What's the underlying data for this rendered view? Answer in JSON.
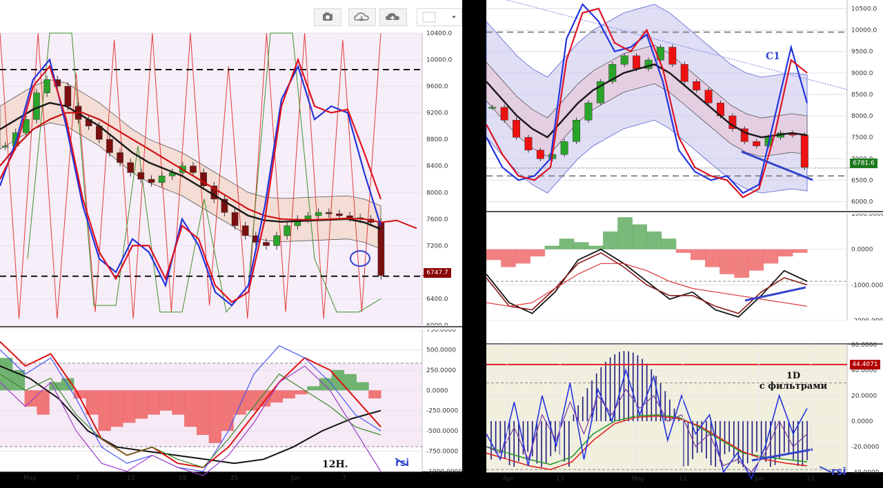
{
  "toolbar": {
    "icons": [
      "camera-icon",
      "cloud-download-icon",
      "cloud-upload-icon",
      "color-swatch-icon",
      "dropdown-arrow-icon"
    ]
  },
  "chart_data": [
    {
      "type": "line",
      "title": "",
      "ohlc_candles": true,
      "y_ticks": [
        "10400.0",
        "10000.0",
        "9600.0",
        "9200.0",
        "8800.0",
        "8400.0",
        "8000.0",
        "7600.0",
        "7200.0",
        "6800.0",
        "6400.0",
        "6000.0"
      ],
      "ylim": [
        6000,
        10400
      ],
      "x_ticks": [
        "May",
        "7",
        "13",
        "19",
        "25",
        "Jun",
        "7"
      ],
      "price_label": "6747.7",
      "price_value": 6747.7,
      "horizontal_levels": [
        9850,
        6740
      ],
      "series": [
        {
          "color": "#1a1a1a",
          "values": [
            8950,
            9100,
            9250,
            9350,
            9300,
            9150,
            9000,
            8800,
            8600,
            8450,
            8350,
            8250,
            8100,
            7950,
            7800,
            7650,
            7580,
            7560,
            7570,
            7580,
            7590,
            7600,
            7550,
            7450
          ]
        },
        {
          "color": "#cc1111",
          "values": [
            8400,
            8700,
            8950,
            9100,
            9200,
            9200,
            9100,
            8950,
            8800,
            8650,
            8500,
            8350,
            8200,
            8050,
            7900,
            7750,
            7650,
            7600,
            7590,
            7590,
            7600,
            7610,
            7600,
            7550
          ]
        },
        {
          "color": "#2233dd",
          "values": [
            8100,
            8800,
            9700,
            10000,
            9000,
            7800,
            7000,
            6800,
            7300,
            7100,
            6600,
            7600,
            7200,
            6500,
            6300,
            6600,
            7800,
            9400,
            9900,
            9100,
            9300,
            9200,
            8300,
            7500
          ]
        },
        {
          "color": "#dd1122",
          "values": [
            8200,
            8700,
            9600,
            9900,
            9100,
            7900,
            7100,
            6700,
            7200,
            7200,
            6700,
            7500,
            7300,
            6600,
            6350,
            6500,
            7600,
            9300,
            10000,
            9300,
            9200,
            9250,
            8600,
            7900
          ]
        }
      ],
      "candles": [
        8700,
        8900,
        9100,
        9500,
        9700,
        9600,
        9300,
        9100,
        9000,
        8800,
        8600,
        8450,
        8300,
        8200,
        8150,
        8250,
        8300,
        8400,
        8300,
        8100,
        7900,
        7700,
        7500,
        7350,
        7250,
        7200,
        7350,
        7500,
        7600,
        7650,
        7700,
        7680,
        7650,
        7620,
        7600,
        7550,
        6750
      ],
      "annotation": ""
    },
    {
      "type": "area",
      "y_ticks": [
        "750.0000",
        "500.0000",
        "250.0000",
        "0.0000",
        "-250.0000",
        "-500.0000",
        "-750.0000",
        "-1000.0000"
      ],
      "ylim": [
        -1000,
        750
      ],
      "x_ticks": [
        "May",
        "7",
        "13",
        "19",
        "25",
        "Jun",
        "7"
      ],
      "histogram": [
        400,
        250,
        -200,
        -300,
        100,
        150,
        -100,
        -300,
        -500,
        -450,
        -400,
        -350,
        -300,
        -250,
        -300,
        -450,
        -550,
        -650,
        -500,
        -300,
        -250,
        -200,
        -150,
        -100,
        -50,
        50,
        150,
        250,
        200,
        100,
        -100
      ],
      "annotation": "12H.",
      "pen_label": "rsi"
    },
    {
      "type": "line",
      "y_ticks": [
        "10500.0",
        "10000.0",
        "9500.0",
        "9000.0",
        "8500.0",
        "8000.0",
        "7500.0",
        "7000.0",
        "6500.0",
        "6000.0"
      ],
      "ylim": [
        5800,
        10700
      ],
      "x_ticks": [],
      "price_label": "6781.6",
      "price_value": 6781.6,
      "horizontal_levels": [
        9950,
        6600
      ],
      "annotation": "C1",
      "series": [
        {
          "color": "#1a1a1a",
          "values": [
            8800,
            8400,
            8000,
            7700,
            7500,
            7900,
            8300,
            8600,
            8800,
            9000,
            9100,
            9200,
            9000,
            8700,
            8400,
            8100,
            7800,
            7600,
            7500,
            7550,
            7600,
            7550
          ]
        },
        {
          "color": "#2233dd",
          "values": [
            7500,
            6800,
            6500,
            6600,
            7000,
            9800,
            10600,
            10200,
            9500,
            9600,
            9900,
            8800,
            7200,
            6700,
            6500,
            6600,
            6200,
            6400,
            8000,
            9600,
            8300
          ]
        },
        {
          "color": "#dd1122",
          "values": [
            7800,
            7100,
            6600,
            6500,
            6800,
            9300,
            10400,
            10500,
            9700,
            9500,
            10000,
            9100,
            7500,
            6800,
            6600,
            6500,
            6100,
            6300,
            7600,
            9300,
            9000
          ]
        }
      ],
      "candles": [
        8200,
        7900,
        7500,
        7200,
        7000,
        7100,
        7400,
        7900,
        8300,
        8800,
        9200,
        9400,
        9100,
        9300,
        9600,
        9200,
        8800,
        8600,
        8300,
        8000,
        7700,
        7400,
        7300,
        7500,
        7600,
        7550,
        6800
      ]
    },
    {
      "type": "area",
      "y_ticks": [
        "1000.0000",
        "0.0000",
        "-1000.0000",
        "-2000.0000"
      ],
      "ylim": [
        -2000,
        1000
      ],
      "histogram": [
        -300,
        -500,
        -400,
        -200,
        100,
        300,
        200,
        100,
        500,
        900,
        700,
        500,
        300,
        -100,
        -300,
        -500,
        -700,
        -800,
        -600,
        -400,
        -200,
        -100
      ],
      "annotation": ""
    },
    {
      "type": "bar",
      "y_ticks": [
        "60.0000",
        "40.0000",
        "20.0000",
        "0.0000",
        "-20.0000",
        "-40.0000"
      ],
      "ylim": [
        -40,
        60
      ],
      "x_ticks": [
        "Apr",
        "13",
        "May",
        "13",
        "Jun",
        "13"
      ],
      "level_label": "44.4071",
      "level_value": 44.4071,
      "annotation": "1D\nс фильтрами",
      "pen_label": "rsi"
    }
  ]
}
